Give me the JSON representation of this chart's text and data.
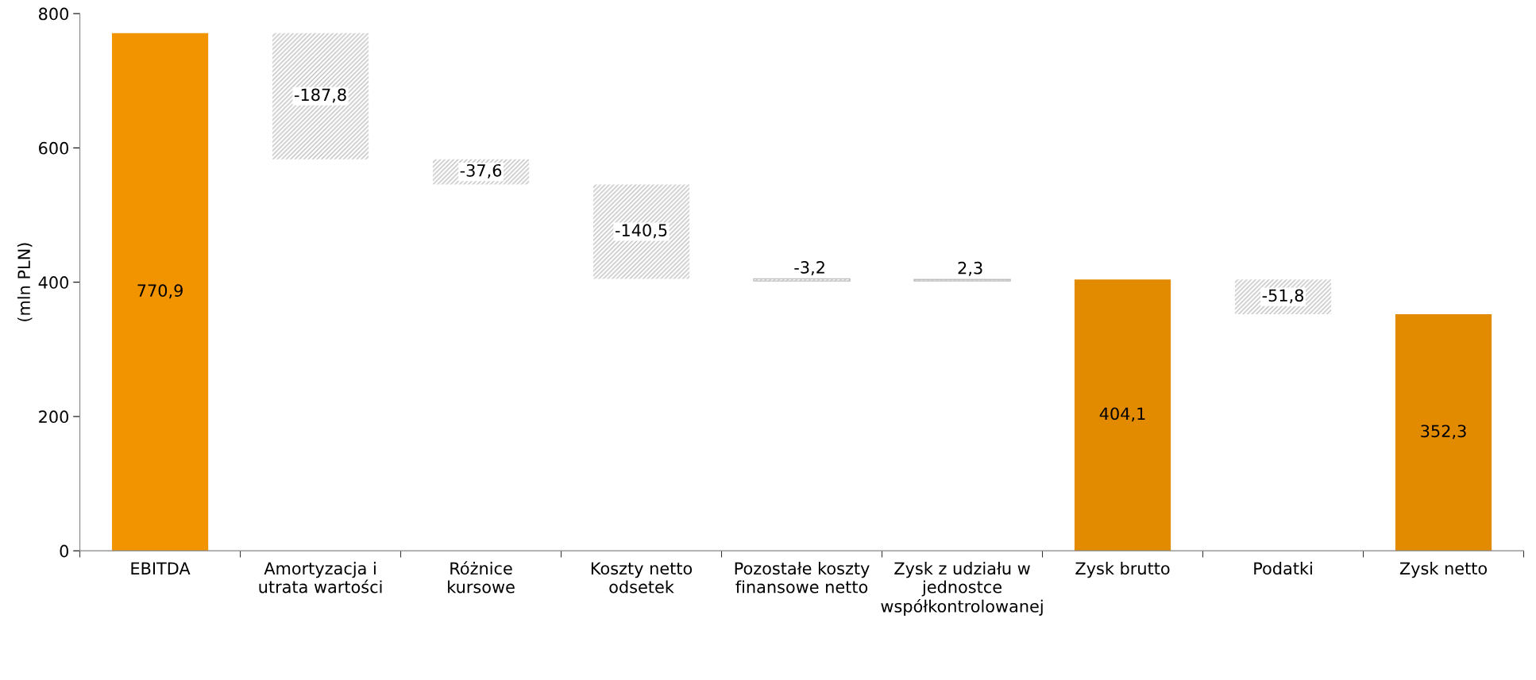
{
  "chart_data": {
    "type": "bar",
    "categories": [
      "EBITDA",
      "Amortyzacja i\nutrata wartości",
      "Różnice\nkursowe",
      "Koszty netto\nodsetek",
      "Pozostałe koszty\nfinansowe netto",
      "Zysk z udziału w\njednostce\nwspółkontrolowanej",
      "Zysk brutto",
      "Podatki",
      "Zysk netto"
    ],
    "values": [
      770.9,
      -187.8,
      -37.6,
      -140.5,
      -3.2,
      2.3,
      404.1,
      -51.8,
      352.3
    ],
    "base": [
      0,
      770.9,
      583.1,
      545.5,
      405.0,
      401.8,
      0,
      404.1,
      0
    ],
    "colors": [
      "#f29400",
      "#bfbfbf",
      "#bfbfbf",
      "#bfbfbf",
      "#bfbfbf",
      "#bfbfbf",
      "#e38b00",
      "#bfbfbf",
      "#e38b00"
    ],
    "value_labels": [
      "770,9",
      "-187,8",
      "-37,6",
      "-140,5",
      "-3,2",
      "2,3",
      "404,1",
      "-51,8",
      "352,3"
    ],
    "ylabel": "(mln PLN)",
    "ylim": [
      0,
      800
    ],
    "yticks": [
      0,
      200,
      400,
      600,
      800
    ],
    "grid": false
  }
}
